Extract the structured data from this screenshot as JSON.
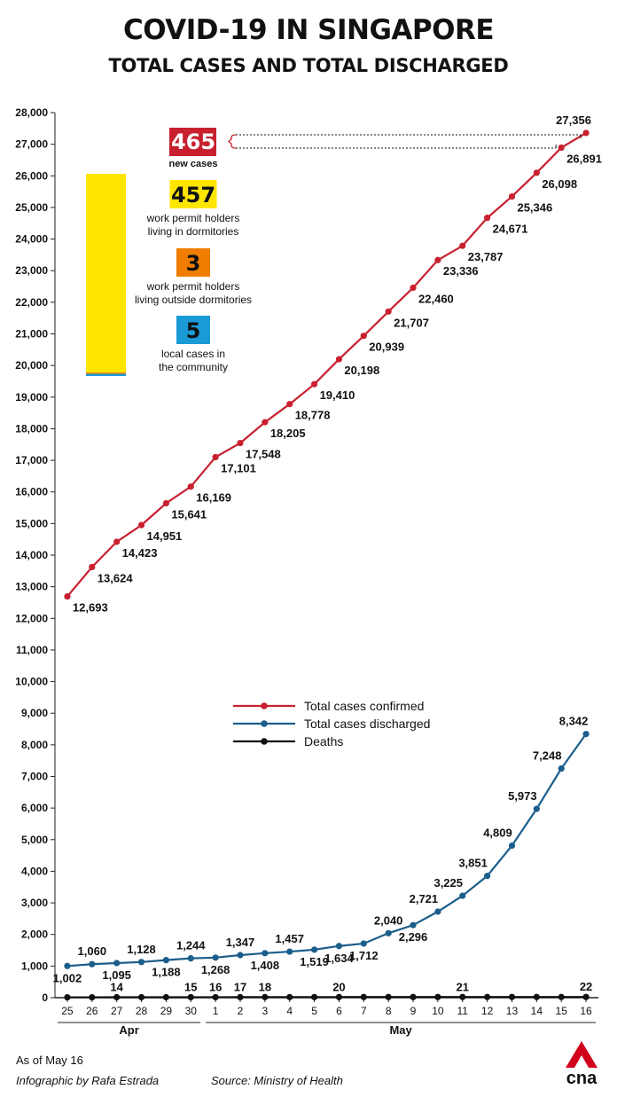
{
  "title": "COVID-19 IN SINGAPORE",
  "subtitle": "TOTAL CASES AND TOTAL DISCHARGED",
  "summary": {
    "new_cases_value": "465",
    "new_cases_label": "new cases",
    "categories": [
      {
        "value": "457",
        "label_line1": "work permit holders",
        "label_line2": "living in dormitories",
        "color": "#ffe600"
      },
      {
        "value": "3",
        "label_line1": "work permit holders",
        "label_line2": "living outside dormitories",
        "color": "#ef7d00"
      },
      {
        "value": "5",
        "label_line1": "local cases in",
        "label_line2": "the community",
        "color": "#1a9bd7"
      }
    ]
  },
  "chart_data": {
    "type": "line",
    "x": [
      "25",
      "26",
      "27",
      "28",
      "29",
      "30",
      "1",
      "2",
      "3",
      "4",
      "5",
      "6",
      "7",
      "8",
      "9",
      "10",
      "11",
      "12",
      "13",
      "14",
      "15",
      "16"
    ],
    "month_labels": [
      {
        "label": "Apr",
        "from": 0,
        "to": 5
      },
      {
        "label": "May",
        "from": 6,
        "to": 21
      }
    ],
    "ylim": [
      0,
      28000
    ],
    "yticks": [
      0,
      1000,
      2000,
      3000,
      4000,
      5000,
      6000,
      7000,
      8000,
      9000,
      10000,
      11000,
      12000,
      13000,
      14000,
      15000,
      16000,
      17000,
      18000,
      19000,
      20000,
      21000,
      22000,
      23000,
      24000,
      25000,
      26000,
      27000,
      28000
    ],
    "ytick_labels": [
      "0",
      "1,000",
      "2,000",
      "3,000",
      "4,000",
      "5,000",
      "6,000",
      "7,000",
      "8,000",
      "9,000",
      "10,000",
      "11,000",
      "12,000",
      "13,000",
      "14,000",
      "15,000",
      "16,000",
      "17,000",
      "18,000",
      "19,000",
      "20,000",
      "21,000",
      "22,000",
      "23,000",
      "24,000",
      "25,000",
      "26,000",
      "27,000",
      "28,000"
    ],
    "legend_position": "center-right",
    "series": [
      {
        "name": "Total cases confirmed",
        "color": "#c8202f",
        "values": [
          12693,
          13624,
          14423,
          14951,
          15641,
          16169,
          17101,
          17548,
          18205,
          18778,
          19410,
          20198,
          20939,
          21707,
          22460,
          23336,
          23787,
          24671,
          25346,
          26098,
          26891,
          27356
        ],
        "labels": [
          "12,693",
          "13,624",
          "14,423",
          "14,951",
          "15,641",
          "16,169",
          "17,101",
          "17,548",
          "18,205",
          "18,778",
          "19,410",
          "20,198",
          "20,939",
          "21,707",
          "22,460",
          "23,336",
          "23,787",
          "24,671",
          "25,346",
          "26,098",
          "26,891",
          "27,356"
        ]
      },
      {
        "name": "Total cases discharged",
        "color": "#1b5e8c",
        "values": [
          1002,
          1060,
          1095,
          1128,
          1188,
          1244,
          1268,
          1347,
          1408,
          1457,
          1519,
          1634,
          1712,
          2040,
          2296,
          2721,
          3225,
          3851,
          4809,
          5973,
          7248,
          8342
        ],
        "labels": [
          "1,002",
          "1,060",
          "1,095",
          "1,128",
          "1,188",
          "1,244",
          "1,268",
          "1,347",
          "1,408",
          "1,457",
          "1,519",
          "1,634",
          "1,712",
          "2,040",
          "2,296",
          "2,721",
          "3,225",
          "3,851",
          "4,809",
          "5,973",
          "7,248",
          "8,342"
        ]
      },
      {
        "name": "Deaths",
        "color": "#111111",
        "values": [
          12,
          12,
          14,
          14,
          14,
          15,
          16,
          17,
          18,
          18,
          18,
          20,
          20,
          20,
          20,
          20,
          21,
          21,
          21,
          21,
          21,
          22
        ],
        "labeled": [
          {
            "i": 2,
            "text": "14"
          },
          {
            "i": 5,
            "text": "15"
          },
          {
            "i": 6,
            "text": "16"
          },
          {
            "i": 7,
            "text": "17"
          },
          {
            "i": 8,
            "text": "18"
          },
          {
            "i": 11,
            "text": "20"
          },
          {
            "i": 16,
            "text": "21"
          },
          {
            "i": 21,
            "text": "22"
          }
        ]
      }
    ]
  },
  "footer": {
    "as_of": "As of May 16",
    "credit": "Infographic by Rafa Estrada",
    "source": "Source: Ministry of Health",
    "logo_text": "cna"
  }
}
